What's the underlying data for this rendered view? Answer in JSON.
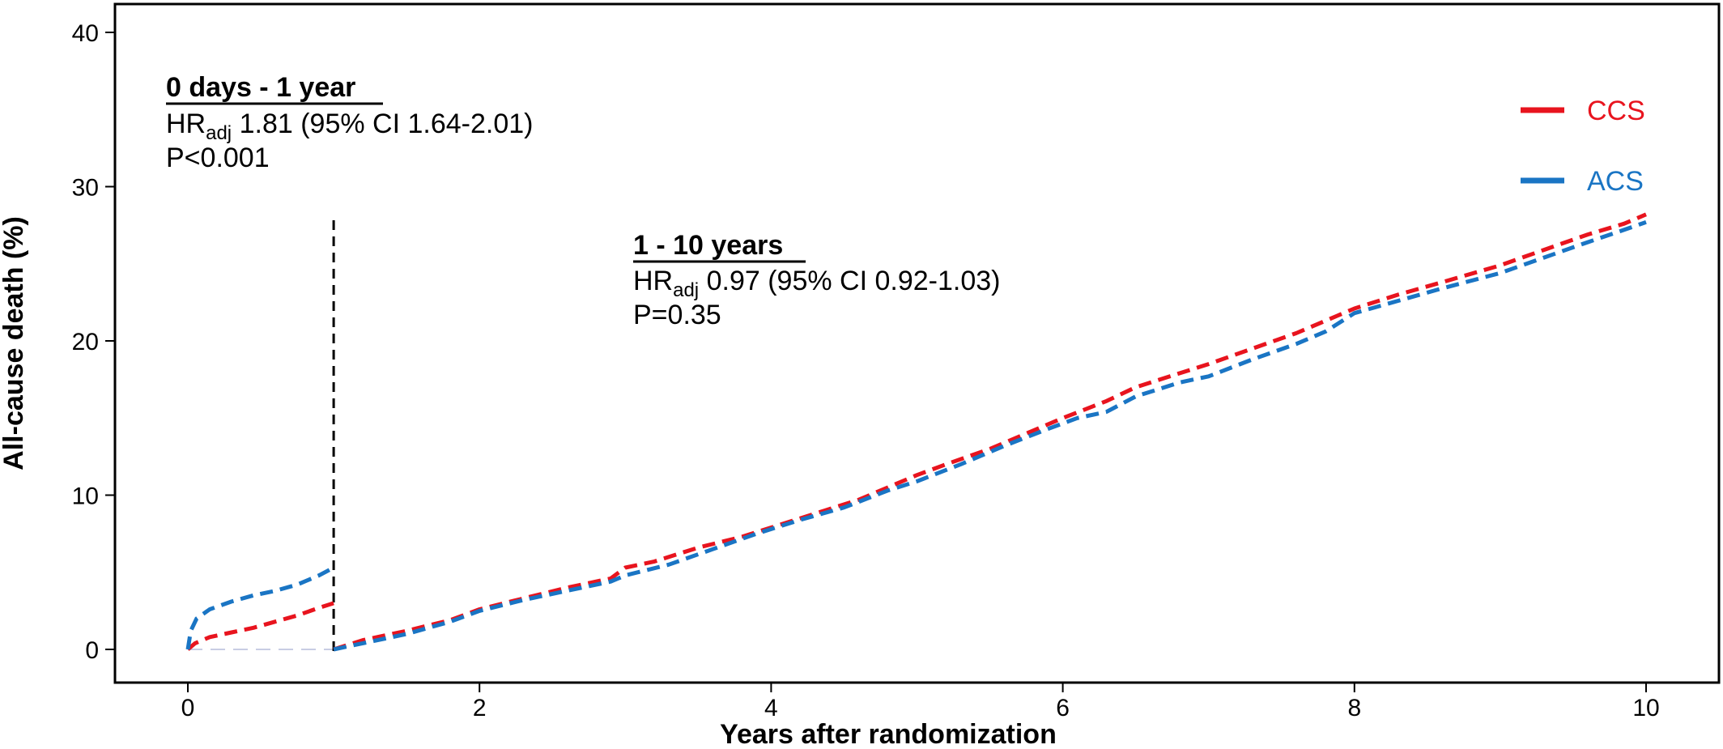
{
  "chart_data": {
    "type": "line",
    "xlabel": "Years after randomization",
    "ylabel": "All-cause death (%)",
    "xlim": [
      -1,
      10.5
    ],
    "ylim": [
      -2,
      42
    ],
    "x_ticks": [
      0,
      2,
      4,
      6,
      8,
      10
    ],
    "y_ticks": [
      0,
      10,
      20,
      30,
      40
    ],
    "grid": false,
    "legend_position": "top-right",
    "landmark_x": 1,
    "series": [
      {
        "name": "CCS",
        "color": "#e8141e",
        "segments": [
          [
            [
              0,
              0
            ],
            [
              0.05,
              0.4
            ],
            [
              0.15,
              0.8
            ],
            [
              0.3,
              1.1
            ],
            [
              0.45,
              1.4
            ],
            [
              0.6,
              1.8
            ],
            [
              0.75,
              2.2
            ],
            [
              0.9,
              2.7
            ],
            [
              1.0,
              3.0
            ]
          ],
          [
            [
              1.0,
              0.0
            ],
            [
              1.2,
              0.6
            ],
            [
              1.5,
              1.2
            ],
            [
              1.8,
              1.9
            ],
            [
              2.0,
              2.6
            ],
            [
              2.3,
              3.3
            ],
            [
              2.6,
              4.0
            ],
            [
              2.9,
              4.6
            ],
            [
              3.0,
              5.3
            ],
            [
              3.2,
              5.7
            ],
            [
              3.5,
              6.6
            ],
            [
              3.8,
              7.3
            ],
            [
              4.0,
              7.9
            ],
            [
              4.3,
              8.8
            ],
            [
              4.6,
              9.7
            ],
            [
              5.0,
              11.3
            ],
            [
              5.2,
              12.0
            ],
            [
              5.5,
              13.0
            ],
            [
              5.8,
              14.2
            ],
            [
              6.0,
              15.0
            ],
            [
              6.3,
              16.1
            ],
            [
              6.5,
              17.0
            ],
            [
              6.8,
              17.9
            ],
            [
              7.0,
              18.5
            ],
            [
              7.3,
              19.5
            ],
            [
              7.6,
              20.5
            ],
            [
              7.8,
              21.3
            ],
            [
              8.0,
              22.1
            ],
            [
              8.3,
              23.0
            ],
            [
              8.6,
              23.8
            ],
            [
              9.0,
              24.9
            ],
            [
              9.3,
              25.9
            ],
            [
              9.6,
              26.9
            ],
            [
              9.85,
              27.6
            ],
            [
              10.0,
              28.2
            ]
          ]
        ]
      },
      {
        "name": "ACS",
        "color": "#1a75c4",
        "segments": [
          [
            [
              0,
              0
            ],
            [
              0.02,
              1.2
            ],
            [
              0.06,
              2.0
            ],
            [
              0.15,
              2.6
            ],
            [
              0.3,
              3.1
            ],
            [
              0.45,
              3.5
            ],
            [
              0.6,
              3.8
            ],
            [
              0.75,
              4.2
            ],
            [
              0.9,
              4.8
            ],
            [
              1.0,
              5.3
            ]
          ],
          [
            [
              1.0,
              0.0
            ],
            [
              1.2,
              0.4
            ],
            [
              1.5,
              1.0
            ],
            [
              1.8,
              1.8
            ],
            [
              2.0,
              2.5
            ],
            [
              2.3,
              3.2
            ],
            [
              2.6,
              3.8
            ],
            [
              2.9,
              4.4
            ],
            [
              3.0,
              4.8
            ],
            [
              3.3,
              5.5
            ],
            [
              3.6,
              6.5
            ],
            [
              3.9,
              7.5
            ],
            [
              4.2,
              8.4
            ],
            [
              4.5,
              9.2
            ],
            [
              4.8,
              10.3
            ],
            [
              5.0,
              10.9
            ],
            [
              5.3,
              12.0
            ],
            [
              5.6,
              13.2
            ],
            [
              5.9,
              14.3
            ],
            [
              6.1,
              15.0
            ],
            [
              6.3,
              15.4
            ],
            [
              6.5,
              16.4
            ],
            [
              6.8,
              17.3
            ],
            [
              7.0,
              17.7
            ],
            [
              7.3,
              18.8
            ],
            [
              7.6,
              19.8
            ],
            [
              7.8,
              20.6
            ],
            [
              8.0,
              21.8
            ],
            [
              8.3,
              22.6
            ],
            [
              8.6,
              23.4
            ],
            [
              9.0,
              24.4
            ],
            [
              9.3,
              25.4
            ],
            [
              9.6,
              26.4
            ],
            [
              9.85,
              27.2
            ],
            [
              10.0,
              27.7
            ]
          ]
        ]
      }
    ],
    "annotations": {
      "early": {
        "heading": "0 days - 1 year",
        "hr_prefix": "HR",
        "hr_sub": "adj",
        "hr_value": " 1.81 (95% CI 1.64-2.01)",
        "p": "P<0.001"
      },
      "late": {
        "heading": "1 - 10 years",
        "hr_prefix": "HR",
        "hr_sub": "adj",
        "hr_value": " 0.97 (95% CI 0.92-1.03)",
        "p": "P=0.35"
      }
    }
  }
}
